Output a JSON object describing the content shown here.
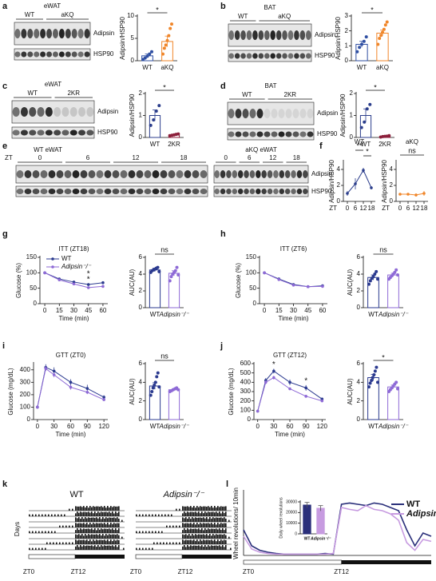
{
  "panels": [
    "a",
    "b",
    "c",
    "d",
    "e",
    "f",
    "g",
    "h",
    "i",
    "j",
    "k",
    "l"
  ],
  "blots": [
    {
      "title": "eWAT",
      "groups": [
        "WT",
        "aKQ"
      ],
      "bands": [
        "Adipsin",
        "HSP90"
      ]
    },
    {
      "title": "BAT",
      "groups": [
        "WT",
        "aKQ"
      ],
      "bands": [
        "Adipsin",
        "HSP90"
      ]
    },
    {
      "title": "eWAT",
      "groups": [
        "WT",
        "2KR"
      ],
      "bands": [
        "Adipsin",
        "HSP90"
      ]
    },
    {
      "title": "BAT",
      "groups": [
        "WT",
        "2KR"
      ],
      "bands": [
        "Adipsin",
        "HSP90"
      ]
    },
    {
      "groups": [
        "WT eWAT",
        "aKQ eWAT"
      ],
      "lane_label": "ZT",
      "timepoints": [
        "0",
        "6",
        "12",
        "18"
      ],
      "bands": [
        "Adipsin",
        "HSP90"
      ]
    }
  ],
  "actograms": {
    "titles": [
      "WT",
      "Adipsin⁻/⁻"
    ],
    "ylabel": "Days",
    "xticks": [
      "ZT0",
      "ZT12"
    ]
  },
  "chart_data": [
    {
      "type": "bar",
      "ylabel": "Adipsin/HSP90",
      "categories": [
        "WT",
        "aKQ"
      ],
      "colors": [
        "#2f4fa2",
        "#f0862a"
      ],
      "values": [
        1.1,
        4.3
      ],
      "errors": [
        0.4,
        1.2
      ],
      "points": [
        [
          0.3,
          0.6,
          1.0,
          1.5,
          2.0
        ],
        [
          1.5,
          2.8,
          3.5,
          4.5,
          5.6,
          7.2,
          8.2
        ]
      ],
      "ylim": [
        0,
        10
      ],
      "yticks": [
        0,
        5,
        10
      ],
      "annotation": "*"
    },
    {
      "type": "bar",
      "ylabel": "Adipsin/HSP90",
      "categories": [
        "WT",
        "aKQ"
      ],
      "colors": [
        "#2f4fa2",
        "#f0862a"
      ],
      "values": [
        1.1,
        1.85
      ],
      "errors": [
        0.2,
        0.2
      ],
      "points": [
        [
          0.6,
          0.9,
          1.1,
          1.3,
          1.6
        ],
        [
          1.1,
          1.5,
          1.7,
          1.9,
          2.1,
          2.4,
          2.6
        ]
      ],
      "ylim": [
        0,
        3
      ],
      "yticks": [
        0,
        1,
        2,
        3
      ],
      "annotation": "*"
    },
    {
      "type": "bar",
      "ylabel": "Adipsin/HSP90",
      "categories": [
        "WT",
        "2KR"
      ],
      "colors": [
        "#2c3e8c",
        "#8c1f3b"
      ],
      "values": [
        1.0,
        0.12
      ],
      "errors": [
        0.25,
        0.02
      ],
      "points": [
        [
          0.55,
          0.8,
          1.2,
          1.45
        ],
        [
          0.08,
          0.1,
          0.12,
          0.14,
          0.16
        ]
      ],
      "ylim": [
        0,
        2
      ],
      "yticks": [
        0,
        1,
        2
      ],
      "annotation": "*"
    },
    {
      "type": "bar",
      "ylabel": "Adipsin/HSP90",
      "categories": [
        "WT",
        "2KR"
      ],
      "colors": [
        "#2c3e8c",
        "#8c1f3b"
      ],
      "values": [
        1.0,
        0.05
      ],
      "errors": [
        0.3,
        0.02
      ],
      "points": [
        [
          0.45,
          0.7,
          1.3,
          1.5
        ],
        [
          0.02,
          0.04,
          0.05,
          0.06,
          0.08
        ]
      ],
      "ylim": [
        0,
        2
      ],
      "yticks": [
        0,
        1,
        2
      ],
      "annotation": "*"
    },
    {
      "type": "line",
      "title": "WT",
      "xlabel": "ZT",
      "ylabel": "Adipsin/HSP90",
      "x": [
        0,
        6,
        12,
        18
      ],
      "xlim": [
        -3,
        21
      ],
      "xticks": [
        0,
        6,
        12,
        18
      ],
      "ylim": [
        0,
        5
      ],
      "yticks": [
        0,
        2,
        4
      ],
      "series": [
        {
          "color": "#2c3e8c",
          "values": [
            1.0,
            2.2,
            3.9,
            1.7
          ],
          "errors": [
            0.3,
            0.7,
            0.3,
            0.2
          ]
        }
      ],
      "annotations": [
        "**",
        "*"
      ]
    },
    {
      "type": "line",
      "title": "aKQ",
      "xlabel": "ZT",
      "ylabel": "Adipsin/HSP90",
      "x": [
        0,
        6,
        12,
        18
      ],
      "xlim": [
        -3,
        21
      ],
      "xticks": [
        0,
        6,
        12,
        18
      ],
      "ylim": [
        0,
        5
      ],
      "yticks": [
        0,
        2,
        4
      ],
      "series": [
        {
          "color": "#f0862a",
          "values": [
            0.9,
            0.9,
            0.8,
            1.0
          ],
          "errors": [
            0.1,
            0.15,
            0.2,
            0.3
          ]
        }
      ],
      "annotations": [
        "ns"
      ]
    },
    {
      "type": "line",
      "title": "ITT (ZT18)",
      "xlabel": "Time (min)",
      "ylabel": "Glucose (%)",
      "x": [
        0,
        15,
        30,
        45,
        60
      ],
      "xlim": [
        -5,
        65
      ],
      "xticks": [
        0,
        15,
        30,
        45,
        60
      ],
      "ylim": [
        0,
        150
      ],
      "yticks": [
        0,
        50,
        100,
        150
      ],
      "legend": "upper left",
      "series": [
        {
          "name": "WT",
          "color": "#2b3a8f",
          "values": [
            100,
            80,
            70,
            62,
            68
          ],
          "errors": [
            1,
            4,
            4,
            3,
            3
          ]
        },
        {
          "name": "Adipsin⁻/⁻",
          "color": "#8e6ad6",
          "values": [
            100,
            77,
            64,
            52,
            56
          ],
          "errors": [
            1,
            3,
            3,
            3,
            3
          ]
        }
      ],
      "annotations": [
        "*",
        "*"
      ]
    },
    {
      "type": "bar",
      "ylabel": "AUC(AU)",
      "categories": [
        "WT",
        "Adipsin⁻/⁻"
      ],
      "colors": [
        "#2b3a8f",
        "#8e6ad6"
      ],
      "values": [
        4.5,
        4.1
      ],
      "errors": [
        0.2,
        0.3
      ],
      "points": [
        [
          4.2,
          4.4,
          4.5,
          4.6,
          4.7,
          4.8,
          4.3
        ],
        [
          3.2,
          3.7,
          4.0,
          4.2,
          4.4,
          4.8,
          3.9
        ]
      ],
      "ylim": [
        0,
        6
      ],
      "yticks": [
        0,
        2,
        4,
        6
      ],
      "annotation": "ns"
    },
    {
      "type": "line",
      "title": "ITT (ZT6)",
      "xlabel": "Time (min)",
      "ylabel": "Glucose (%)",
      "x": [
        0,
        15,
        30,
        45,
        60
      ],
      "xlim": [
        -5,
        65
      ],
      "xticks": [
        0,
        15,
        30,
        45,
        60
      ],
      "ylim": [
        0,
        150
      ],
      "yticks": [
        0,
        50,
        100,
        150
      ],
      "series": [
        {
          "color": "#2b3a8f",
          "values": [
            100,
            80,
            62,
            55,
            58
          ],
          "errors": [
            1,
            3,
            3,
            2,
            3
          ]
        },
        {
          "color": "#8e6ad6",
          "values": [
            100,
            78,
            60,
            55,
            56
          ],
          "errors": [
            1,
            3,
            3,
            2,
            2
          ]
        }
      ],
      "annotations": []
    },
    {
      "type": "bar",
      "ylabel": "AUC(AU)",
      "categories": [
        "WT",
        "Adipsin⁻/⁻"
      ],
      "colors": [
        "#2b3a8f",
        "#8e6ad6"
      ],
      "values": [
        3.6,
        3.9
      ],
      "errors": [
        0.3,
        0.2
      ],
      "points": [
        [
          2.8,
          3.2,
          3.5,
          3.7,
          4.0,
          4.3,
          3.4
        ],
        [
          3.4,
          3.6,
          3.8,
          4.0,
          4.2,
          4.5,
          3.9
        ]
      ],
      "ylim": [
        0,
        6
      ],
      "yticks": [
        0,
        2,
        4,
        6
      ],
      "annotation": "ns"
    },
    {
      "type": "line",
      "title": "GTT (ZT0)",
      "xlabel": "Time (min)",
      "ylabel": "Glucose (mg/dL)",
      "x": [
        0,
        15,
        30,
        60,
        90,
        120
      ],
      "xlim": [
        -7,
        127
      ],
      "xticks": [
        0,
        30,
        60,
        90,
        120
      ],
      "ylim": [
        0,
        450
      ],
      "yticks": [
        0,
        100,
        200,
        300,
        400
      ],
      "series": [
        {
          "color": "#2b3a8f",
          "values": [
            100,
            420,
            390,
            300,
            250,
            180
          ],
          "errors": [
            5,
            25,
            30,
            25,
            30,
            15
          ]
        },
        {
          "color": "#8e6ad6",
          "values": [
            100,
            410,
            360,
            260,
            220,
            160
          ],
          "errors": [
            5,
            20,
            20,
            20,
            15,
            10
          ]
        }
      ],
      "annotations": []
    },
    {
      "type": "bar",
      "ylabel": "AUC(AU)",
      "categories": [
        "WT",
        "Adipsin⁻/⁻"
      ],
      "colors": [
        "#2b3a8f",
        "#8e6ad6"
      ],
      "values": [
        3.6,
        3.2
      ],
      "errors": [
        0.35,
        0.1
      ],
      "points": [
        [
          2.6,
          3.0,
          3.4,
          3.7,
          4.0,
          4.6,
          5.0,
          3.5
        ],
        [
          3.0,
          3.1,
          3.2,
          3.3,
          3.4,
          3.2
        ]
      ],
      "ylim": [
        0,
        6
      ],
      "yticks": [
        0,
        2,
        4,
        6
      ],
      "annotation": "ns"
    },
    {
      "type": "line",
      "title": "GTT (ZT12)",
      "xlabel": "Time (min)",
      "ylabel": "Glucose (mg/dL)",
      "x": [
        0,
        15,
        30,
        60,
        90,
        120
      ],
      "xlim": [
        -7,
        127
      ],
      "xticks": [
        0,
        30,
        60,
        90,
        120
      ],
      "ylim": [
        0,
        600
      ],
      "yticks": [
        0,
        100,
        200,
        300,
        400,
        500,
        600
      ],
      "series": [
        {
          "color": "#2b3a8f",
          "values": [
            90,
            420,
            520,
            400,
            340,
            220
          ],
          "errors": [
            5,
            25,
            25,
            30,
            30,
            15
          ]
        },
        {
          "color": "#8e6ad6",
          "values": [
            90,
            400,
            450,
            330,
            250,
            200
          ],
          "errors": [
            5,
            20,
            20,
            15,
            15,
            10
          ]
        }
      ],
      "annotations": [
        "*",
        "*"
      ]
    },
    {
      "type": "bar",
      "ylabel": "AUC(AU)",
      "categories": [
        "WT",
        "Adipsin⁻/⁻"
      ],
      "colors": [
        "#2b3a8f",
        "#8e6ad6"
      ],
      "values": [
        4.5,
        3.5
      ],
      "errors": [
        0.35,
        0.2
      ],
      "points": [
        [
          3.5,
          3.9,
          4.2,
          4.5,
          4.8,
          5.2,
          5.6,
          4.0
        ],
        [
          3.0,
          3.2,
          3.4,
          3.6,
          3.8,
          4.0,
          3.3
        ]
      ],
      "ylim": [
        0,
        6
      ],
      "yticks": [
        0,
        2,
        4,
        6
      ],
      "annotation": "*"
    },
    {
      "type": "line",
      "ylabel": "Wheel revolutions/ 10min",
      "categories": [
        "ZT0",
        null,
        null,
        null,
        null,
        null,
        null,
        null,
        null,
        null,
        null,
        null,
        "ZT12",
        null,
        null,
        null,
        null,
        null,
        null,
        null,
        null,
        null,
        null,
        null
      ],
      "ylim": [
        0,
        100
      ],
      "legend": "upper right",
      "series": [
        {
          "name": "WT",
          "color": "#2a2f7a",
          "values": [
            40,
            15,
            8,
            5,
            3,
            2,
            2,
            2,
            2,
            2,
            3,
            2,
            80,
            82,
            80,
            78,
            82,
            80,
            75,
            70,
            40,
            15,
            35,
            30
          ]
        },
        {
          "name": "Adipsin⁻/⁻",
          "color": "#c79be0",
          "values": [
            30,
            10,
            5,
            3,
            2,
            2,
            2,
            2,
            2,
            2,
            2,
            3,
            75,
            72,
            70,
            78,
            72,
            70,
            65,
            55,
            20,
            8,
            25,
            22
          ]
        }
      ],
      "annotations": []
    },
    {
      "type": "bar",
      "ylabel": "Daily wheel revolutions",
      "categories": [
        "WT",
        "Adipsin⁻/⁻"
      ],
      "colors": [
        "#2a2f7a",
        "#c79be0"
      ],
      "values": [
        27000,
        24000
      ],
      "errors": [
        2500,
        2500
      ],
      "ylim": [
        0,
        30000
      ],
      "yticks": [
        0,
        10000,
        20000,
        30000
      ]
    }
  ]
}
